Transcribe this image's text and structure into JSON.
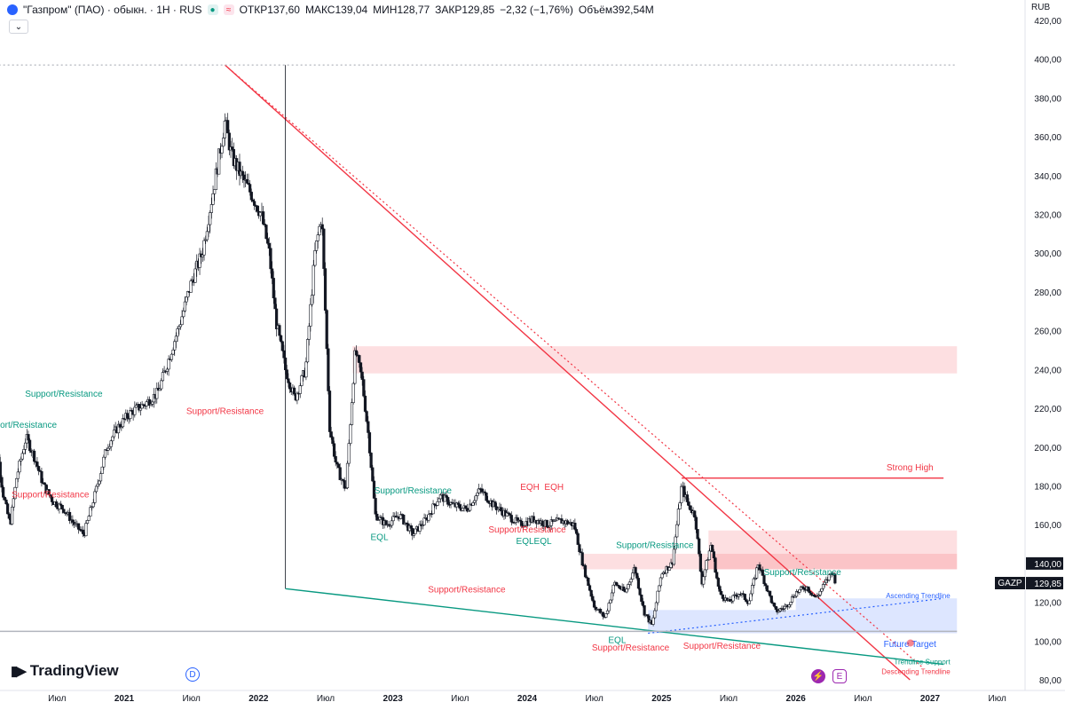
{
  "header": {
    "symbol": "\"Газпром\" (ПАО) · обыкн. · 1H · RUS",
    "open_label": "ОТКР",
    "open": "137,60",
    "high_label": "МАКС",
    "high": "139,04",
    "low_label": "МИН",
    "low": "128,77",
    "close_label": "ЗАКР",
    "close": "129,85",
    "change": "−2,32 (−1,76%)",
    "volume_label": "Объём",
    "volume": "392,54М"
  },
  "currency": "RUB",
  "ticker_badge": "GAZP",
  "logo_text": "TradingView",
  "icons": [
    "chevron-down-icon",
    "dividend-icon",
    "lightning-icon",
    "earnings-icon",
    "tradingview-logo-icon"
  ],
  "chart_data": {
    "type": "candlestick",
    "y_axis": {
      "min": 80,
      "max": 420,
      "tick_labels": [
        "420,00",
        "400,00",
        "380,00",
        "360,00",
        "340,00",
        "320,00",
        "300,00",
        "280,00",
        "260,00",
        "240,00",
        "220,00",
        "200,00",
        "180,00",
        "160,00",
        "140,00",
        "120,00",
        "100,00",
        "80,00"
      ]
    },
    "x_axis": {
      "tick_labels": [
        "Июл",
        "2021",
        "Июл",
        "2022",
        "Июл",
        "2023",
        "Июл",
        "2024",
        "Июл",
        "2025",
        "Июл",
        "2026",
        "Июл",
        "2027",
        "Июл"
      ]
    },
    "price_labels": [
      {
        "value": "140,00",
        "price": 140,
        "color": "#131722"
      },
      {
        "value": "129,85",
        "price": 129.85,
        "color": "#131722"
      }
    ],
    "series": [
      {
        "t": 2020.0,
        "p": 235
      },
      {
        "t": 2020.05,
        "p": 200
      },
      {
        "t": 2020.1,
        "p": 175
      },
      {
        "t": 2020.15,
        "p": 160
      },
      {
        "t": 2020.2,
        "p": 185
      },
      {
        "t": 2020.27,
        "p": 205
      },
      {
        "t": 2020.33,
        "p": 195
      },
      {
        "t": 2020.4,
        "p": 180
      },
      {
        "t": 2020.47,
        "p": 172
      },
      {
        "t": 2020.55,
        "p": 168
      },
      {
        "t": 2020.63,
        "p": 160
      },
      {
        "t": 2020.7,
        "p": 155
      },
      {
        "t": 2020.78,
        "p": 175
      },
      {
        "t": 2020.87,
        "p": 200
      },
      {
        "t": 2020.95,
        "p": 210
      },
      {
        "t": 2021.05,
        "p": 218
      },
      {
        "t": 2021.15,
        "p": 222
      },
      {
        "t": 2021.25,
        "p": 228
      },
      {
        "t": 2021.33,
        "p": 245
      },
      {
        "t": 2021.42,
        "p": 265
      },
      {
        "t": 2021.5,
        "p": 285
      },
      {
        "t": 2021.58,
        "p": 300
      },
      {
        "t": 2021.67,
        "p": 335
      },
      {
        "t": 2021.75,
        "p": 368
      },
      {
        "t": 2021.8,
        "p": 350
      },
      {
        "t": 2021.87,
        "p": 340
      },
      {
        "t": 2021.95,
        "p": 330
      },
      {
        "t": 2022.02,
        "p": 320
      },
      {
        "t": 2022.08,
        "p": 300
      },
      {
        "t": 2022.13,
        "p": 265
      },
      {
        "t": 2022.2,
        "p": 240
      },
      {
        "t": 2022.27,
        "p": 225
      },
      {
        "t": 2022.35,
        "p": 240
      },
      {
        "t": 2022.42,
        "p": 300
      },
      {
        "t": 2022.47,
        "p": 320
      },
      {
        "t": 2022.53,
        "p": 210
      },
      {
        "t": 2022.58,
        "p": 190
      },
      {
        "t": 2022.65,
        "p": 178
      },
      {
        "t": 2022.72,
        "p": 250
      },
      {
        "t": 2022.77,
        "p": 235
      },
      {
        "t": 2022.82,
        "p": 205
      },
      {
        "t": 2022.87,
        "p": 165
      },
      {
        "t": 2022.95,
        "p": 160
      },
      {
        "t": 2023.05,
        "p": 165
      },
      {
        "t": 2023.15,
        "p": 155
      },
      {
        "t": 2023.25,
        "p": 163
      },
      {
        "t": 2023.35,
        "p": 175
      },
      {
        "t": 2023.45,
        "p": 170
      },
      {
        "t": 2023.55,
        "p": 168
      },
      {
        "t": 2023.65,
        "p": 178
      },
      {
        "t": 2023.75,
        "p": 170
      },
      {
        "t": 2023.85,
        "p": 165
      },
      {
        "t": 2023.95,
        "p": 160
      },
      {
        "t": 2024.05,
        "p": 163
      },
      {
        "t": 2024.15,
        "p": 160
      },
      {
        "t": 2024.25,
        "p": 162
      },
      {
        "t": 2024.35,
        "p": 160
      },
      {
        "t": 2024.42,
        "p": 138
      },
      {
        "t": 2024.5,
        "p": 118
      },
      {
        "t": 2024.58,
        "p": 112
      },
      {
        "t": 2024.65,
        "p": 130
      },
      {
        "t": 2024.73,
        "p": 125
      },
      {
        "t": 2024.8,
        "p": 138
      },
      {
        "t": 2024.87,
        "p": 115
      },
      {
        "t": 2024.93,
        "p": 108
      },
      {
        "t": 2025.0,
        "p": 135
      },
      {
        "t": 2025.08,
        "p": 140
      },
      {
        "t": 2025.15,
        "p": 180
      },
      {
        "t": 2025.2,
        "p": 170
      },
      {
        "t": 2025.25,
        "p": 165
      },
      {
        "t": 2025.3,
        "p": 130
      },
      {
        "t": 2025.37,
        "p": 150
      },
      {
        "t": 2025.43,
        "p": 125
      },
      {
        "t": 2025.5,
        "p": 120
      },
      {
        "t": 2025.58,
        "p": 125
      },
      {
        "t": 2025.65,
        "p": 120
      },
      {
        "t": 2025.72,
        "p": 140
      },
      {
        "t": 2025.78,
        "p": 128
      },
      {
        "t": 2025.85,
        "p": 115
      },
      {
        "t": 2025.93,
        "p": 118
      },
      {
        "t": 2026.0,
        "p": 125
      },
      {
        "t": 2026.08,
        "p": 128
      },
      {
        "t": 2026.15,
        "p": 122
      },
      {
        "t": 2026.22,
        "p": 130
      },
      {
        "t": 2026.27,
        "p": 136
      },
      {
        "t": 2026.3,
        "p": 129.85
      }
    ],
    "zones": [
      {
        "from": 2022.7,
        "to": 2027.2,
        "top": 252,
        "bottom": 238,
        "color": "#f23645"
      },
      {
        "from": 2025.35,
        "to": 2027.2,
        "top": 157,
        "bottom": 137,
        "color": "#f23645"
      },
      {
        "from": 2024.4,
        "to": 2027.2,
        "top": 145,
        "bottom": 137,
        "color": "#f23645"
      },
      {
        "from": 2026.0,
        "to": 2027.2,
        "top": 122,
        "bottom": 116,
        "color": "#2962ff"
      },
      {
        "from": 2024.9,
        "to": 2027.2,
        "top": 116,
        "bottom": 104,
        "color": "#2962ff"
      }
    ],
    "trendlines": [
      {
        "name": "descending-trendline",
        "from": [
          2021.75,
          397
        ],
        "to": [
          2026.85,
          80
        ],
        "color": "#f23645",
        "style": "solid"
      },
      {
        "name": "descending-trendline-dotted",
        "from": [
          2021.75,
          397
        ],
        "to": [
          2026.95,
          86
        ],
        "color": "#f23645",
        "style": "dotted"
      },
      {
        "name": "trendline-support",
        "from": [
          2022.2,
          127
        ],
        "to": [
          2027.1,
          88
        ],
        "color": "#089981",
        "style": "solid"
      },
      {
        "name": "ascending-trendline",
        "from": [
          2024.9,
          104
        ],
        "to": [
          2027.1,
          122
        ],
        "color": "#2962ff",
        "style": "dotted"
      },
      {
        "name": "strong-high-line",
        "from": [
          2025.15,
          184
        ],
        "to": [
          2027.1,
          184
        ],
        "color": "#f23645",
        "style": "solid"
      },
      {
        "name": "resistance-top-line",
        "from": [
          2020.0,
          397
        ],
        "to": [
          2027.2,
          397
        ],
        "color": "#b2b5be",
        "style": "dotted"
      },
      {
        "name": "floor-line",
        "from": [
          2020.0,
          105
        ],
        "to": [
          2027.2,
          105
        ],
        "color": "#b2b5be",
        "style": "solid"
      }
    ],
    "annotations": [
      {
        "text": "Support/Resistance",
        "t": 2020.55,
        "price": 226,
        "color": "#089981"
      },
      {
        "text": "pport/Resistance",
        "t": 2020.25,
        "price": 210,
        "color": "#089981"
      },
      {
        "text": "Support/Resistance",
        "t": 2020.45,
        "price": 174,
        "color": "#f23645"
      },
      {
        "text": "Support/Resistance",
        "t": 2021.75,
        "price": 217,
        "color": "#f23645"
      },
      {
        "text": "Support/Resistance",
        "t": 2023.15,
        "price": 176,
        "color": "#089981"
      },
      {
        "text": "EQL",
        "t": 2022.9,
        "price": 152,
        "color": "#089981"
      },
      {
        "text": "Support/Resistance",
        "t": 2023.55,
        "price": 125,
        "color": "#f23645"
      },
      {
        "text": "Support/Resistance",
        "t": 2024.0,
        "price": 156,
        "color": "#f23645"
      },
      {
        "text": "EQH",
        "t": 2024.02,
        "price": 178,
        "color": "#f23645"
      },
      {
        "text": "EQH",
        "t": 2024.2,
        "price": 178,
        "color": "#f23645"
      },
      {
        "text": "EQLEQL",
        "t": 2024.05,
        "price": 150,
        "color": "#089981"
      },
      {
        "text": "Support/Resistance",
        "t": 2024.95,
        "price": 148,
        "color": "#089981"
      },
      {
        "text": "EQL",
        "t": 2024.67,
        "price": 99,
        "color": "#089981"
      },
      {
        "text": "Support/Resistance",
        "t": 2024.77,
        "price": 95,
        "color": "#f23645"
      },
      {
        "text": "Support/Resistance",
        "t": 2025.45,
        "price": 96,
        "color": "#f23645"
      },
      {
        "text": "Support/Resistance",
        "t": 2026.05,
        "price": 134,
        "color": "#089981"
      },
      {
        "text": "Strong High",
        "t": 2026.85,
        "price": 188,
        "color": "#f23645"
      },
      {
        "text": "Ascending Trendline",
        "t": 2027.15,
        "price": 122,
        "color": "#2962ff"
      },
      {
        "text": "Future Target",
        "t": 2026.85,
        "price": 97,
        "color": "#2962ff"
      },
      {
        "text": "Trendline Support",
        "t": 2027.15,
        "price": 88,
        "color": "#089981"
      },
      {
        "text": "Descending Trendline",
        "t": 2027.15,
        "price": 83,
        "color": "#f23645"
      }
    ]
  }
}
